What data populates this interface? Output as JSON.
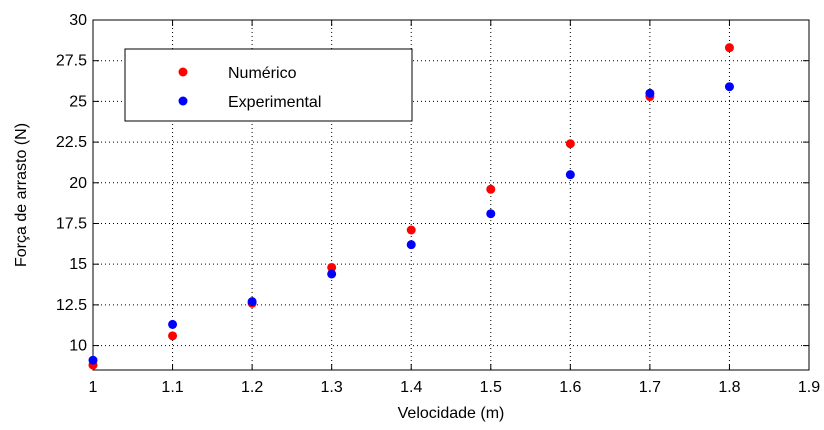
{
  "chart_data": {
    "type": "scatter",
    "title": "",
    "xlabel": "Velocidade (m)",
    "ylabel": "Força de arrasto (N)",
    "xlim": [
      1,
      1.9
    ],
    "ylim": [
      8.5,
      30
    ],
    "x_ticks": [
      1,
      1.1,
      1.2,
      1.3,
      1.4,
      1.5,
      1.6,
      1.7,
      1.8,
      1.9
    ],
    "x_tick_labels": [
      "1",
      "1.1",
      "1.2",
      "1.3",
      "1.4",
      "1.5",
      "1.6",
      "1.7",
      "1.8",
      "1.9"
    ],
    "y_ticks": [
      10,
      12.5,
      15,
      17.5,
      20,
      22.5,
      25,
      27.5,
      30
    ],
    "y_tick_labels": [
      "10",
      "12.5",
      "15",
      "17.5",
      "20",
      "22.5",
      "25",
      "27.5",
      "30"
    ],
    "grid": true,
    "legend_position": "top-left",
    "x": [
      1.0,
      1.1,
      1.2,
      1.3,
      1.4,
      1.5,
      1.6,
      1.7,
      1.8
    ],
    "series": [
      {
        "name": "Numérico",
        "color": "#ff0000",
        "values": [
          8.8,
          10.6,
          12.6,
          14.8,
          17.1,
          19.6,
          22.4,
          25.3,
          28.3
        ]
      },
      {
        "name": "Experimental",
        "color": "#0000ff",
        "values": [
          9.1,
          11.3,
          12.7,
          14.4,
          16.2,
          18.1,
          20.5,
          25.5,
          25.9
        ]
      }
    ]
  }
}
